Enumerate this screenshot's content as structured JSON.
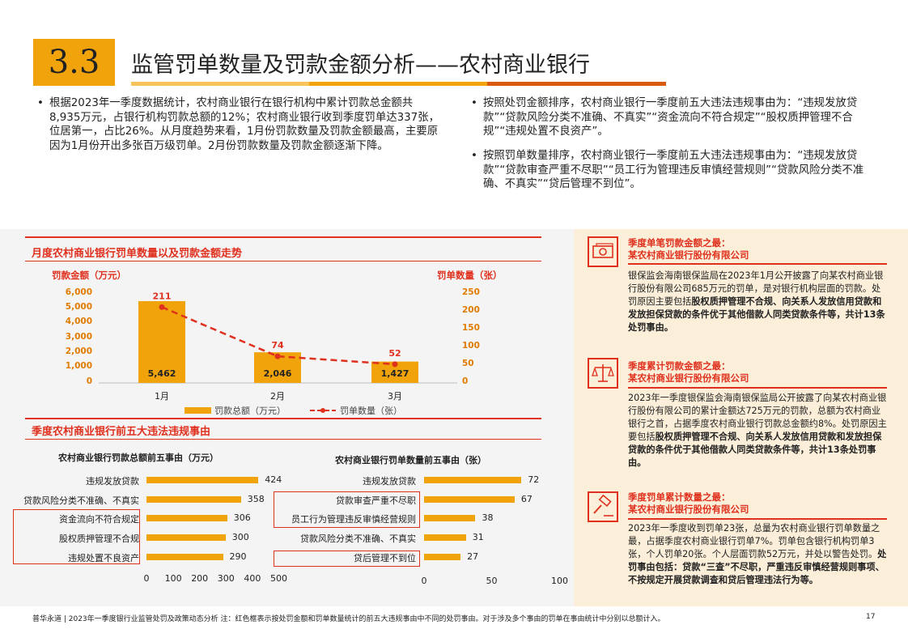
{
  "header": {
    "section_number": "3.3",
    "title": "监管罚单数量及罚款金额分析——农村商业银行"
  },
  "bullets_left": [
    "根据2023年一季度数据统计，农村商业银行在银行机构中累计罚款总金额共8,935万元，占银行机构罚款总额的12%；农村商业银行收到季度罚单达337张，位居第一，占比26%。从月度趋势来看，1月份罚款数量及罚款金额最高，主要原因为1月份开出多张百万级罚单。2月份罚款数量及罚款金额逐渐下降。"
  ],
  "bullets_right": [
    "按照处罚金额排序，农村商业银行一季度前五大违法违规事由为：“违规发放贷款”“贷款风险分类不准确、不真实”“资金流向不符合规定”“股权质押管理不合规”“违规处置不良资产”。",
    "按照罚单数量排序，农村商业银行一季度前五大违法违规事由为：“违规发放贷款”“贷款审查严重不尽职”“员工行为管理违反审慎经营规则”“贷款风险分类不准确、不真实”“贷后管理不到位”。"
  ],
  "monthly": {
    "heading": "月度农村商业银行罚单数量以及罚款金额走势",
    "left_axis_title": "罚款金额（万元）",
    "right_axis_title": "罚单数量（张）",
    "legend_bar": "罚款总额（万元）",
    "legend_line": "罚单数量（张）"
  },
  "top5": {
    "heading": "季度农村商业银行前五大违法违规事由",
    "amount_title": "农村商业银行罚款总额前五事由（万元）",
    "count_title": "农村商业银行罚单数量前五事由（张）"
  },
  "chart_data": [
    {
      "type": "bar",
      "name": "monthly-trend",
      "categories": [
        "1月",
        "2月",
        "3月"
      ],
      "series": [
        {
          "name": "罚款总额（万元）",
          "type": "bar",
          "axis": "left",
          "values": [
            5462,
            2046,
            1427
          ],
          "labels": [
            "5,462",
            "2,046",
            "1,427"
          ]
        },
        {
          "name": "罚单数量（张）",
          "type": "line",
          "axis": "right",
          "values": [
            211,
            74,
            52
          ]
        }
      ],
      "left_axis": {
        "title": "罚款金额（万元）",
        "ylim": [
          0,
          6000
        ],
        "ticks": [
          "0",
          "1,000",
          "2,000",
          "3,000",
          "4,000",
          "5,000",
          "6,000"
        ]
      },
      "right_axis": {
        "title": "罚单数量（张）",
        "ylim": [
          0,
          250
        ],
        "ticks": [
          "0",
          "50",
          "100",
          "150",
          "200",
          "250"
        ]
      },
      "legend": "bottom"
    },
    {
      "type": "bar",
      "orientation": "horizontal",
      "name": "top5-amount",
      "title": "农村商业银行罚款总额前五事由（万元）",
      "categories": [
        "违规发放贷款",
        "贷款风险分类不准确、不真实",
        "资金流向不符合规定",
        "股权质押管理不合规",
        "违规处置不良资产"
      ],
      "values": [
        424,
        358,
        306,
        300,
        290
      ],
      "highlighted": [
        "资金流向不符合规定",
        "股权质押管理不合规",
        "违规处置不良资产"
      ],
      "xlim": [
        0,
        500
      ],
      "xticks": [
        "0",
        "100",
        "200",
        "300",
        "400",
        "500"
      ]
    },
    {
      "type": "bar",
      "orientation": "horizontal",
      "name": "top5-count",
      "title": "农村商业银行罚单数量前五事由（张）",
      "categories": [
        "违规发放贷款",
        "贷款审查严重不尽职",
        "员工行为管理违反审慎经营规则",
        "贷款风险分类不准确、不真实",
        "贷后管理不到位"
      ],
      "values": [
        72,
        67,
        38,
        31,
        27
      ],
      "highlighted": [
        "贷款审查严重不尽职",
        "员工行为管理违反审慎经营规则",
        "贷后管理不到位"
      ],
      "xlim": [
        0,
        100
      ],
      "xticks": [
        "0",
        "50",
        "100"
      ]
    }
  ],
  "cases": [
    {
      "icon": "cash-icon",
      "title1": "季度单笔罚款金额之最：",
      "title2": "某农村商业银行股份有限公司",
      "body_plain": "银保监会海南银保监局在2023年1月公开披露了向某农村商业银行股份有限公司685万元的罚单，是对银行机构层面的罚款。处罚原因主要包括",
      "body_bold": "股权质押管理不合规、向关系人发放信用贷款和发放担保贷款的条件优于其他借款人同类贷款条件等，共计13条处罚事由。"
    },
    {
      "icon": "scale-icon",
      "title1": "季度累计罚款金额之最：",
      "title2": "某农村商业银行股份有限公司",
      "body_plain": "2023年一季度银保监会海南银保监局公开披露了向某农村商业银行股份有限公司的累计金额达725万元的罚款，总额为农村商业银行之首，占据季度农村商业银行罚款总金额约8%。处罚原因主要包括",
      "body_bold": "股权质押管理不合规、向关系人发放信用贷款和发放担保贷款的条件优于其他借款人同类贷款条件等，共计13条处罚事由。"
    },
    {
      "icon": "gavel-icon",
      "title1": "季度罚单累计数量之最：",
      "title2": "某农村商业银行股份有限公司",
      "body_plain": "2023年一季度收到罚单23张，总量为农村商业银行罚单数量之最，占据季度农村商业银行罚单7%。罚单包含银行机构罚单3张，个人罚单20张。个人层面罚款52万元，并处以警告处罚。",
      "body_bold": "处罚事由包括：贷款“三查”不尽职，严重违反审慎经营规则事项、不按规定开展贷款调查和贷后管理违法行为等。"
    }
  ],
  "footer": {
    "source": "普华永道 | 2023年一季度银行业监管处罚及政策动态分析    注：红色框表示按处罚金额和罚单数量统计的前五大违规事由中不同的处罚事由。对于涉及多个事由的罚单在事由统计中分别以总额计入。",
    "page": "17"
  }
}
